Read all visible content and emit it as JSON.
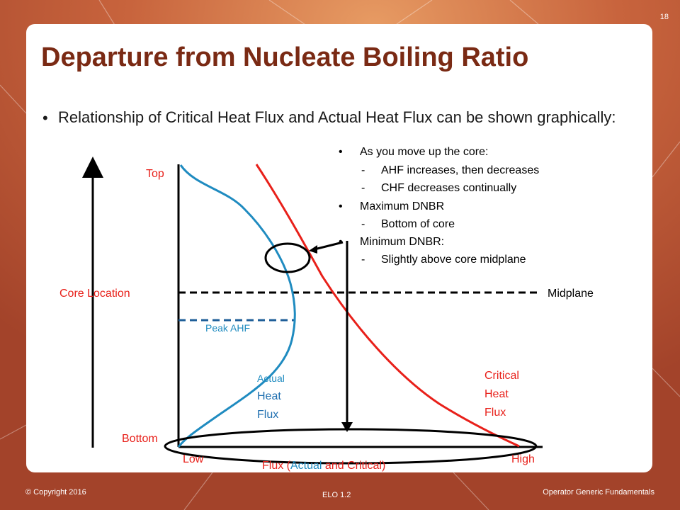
{
  "slide": {
    "page_number": "18",
    "title": "Departure from Nucleate Boiling Ratio",
    "main_bullet": "Relationship of Critical Heat Flux and Actual Heat Flux can be shown graphically:"
  },
  "notes": {
    "b1": "As you move up the core:",
    "b1_sub1": "AHF increases, then decreases",
    "b1_sub2": "CHF decreases continually",
    "b2": "Maximum DNBR",
    "b2_sub1": "Bottom of core",
    "b3": "Minimum DNBR:",
    "b3_sub1": "Slightly above core midplane"
  },
  "diagram": {
    "top": "Top",
    "bottom": "Bottom",
    "core_location": "Core Location",
    "midplane": "Midplane",
    "peak_ahf": "Peak AHF",
    "actual": "Actual",
    "heat": "Heat",
    "flux": "Flux",
    "critical": "Critical",
    "crit_heat": "Heat",
    "crit_flux": "Flux",
    "low": "Low",
    "high": "High",
    "flux_axis_pre": "Flux (",
    "flux_axis_actual": "Actual",
    "flux_axis_and": " and ",
    "flux_axis_critical": "Critical",
    "flux_axis_post": ")",
    "colors": {
      "actual": "#1f8bc0",
      "critical": "#e8201a",
      "title": "#7a2a14"
    }
  },
  "footer": {
    "copyright": "© Copyright 2016",
    "elo": "ELO 1.2",
    "right": "Operator Generic Fundamentals"
  }
}
